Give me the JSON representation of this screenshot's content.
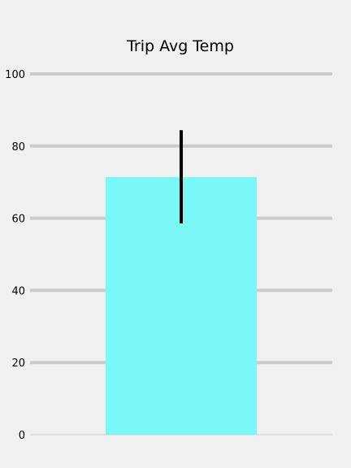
{
  "chart_data": {
    "type": "bar",
    "title": "Trip Avg Temp",
    "xlabel": "",
    "ylabel": "",
    "categories": [
      ""
    ],
    "values": [
      71.4
    ],
    "error": {
      "lower": 58.6,
      "upper": 84.4
    },
    "ylim": [
      0,
      100
    ],
    "yticks": [
      "0",
      "20",
      "40",
      "60",
      "80",
      "100"
    ],
    "ytick_values": [
      0,
      20,
      40,
      60,
      80,
      100
    ],
    "grid": "y",
    "legend": "none",
    "colors": {
      "background": "#f0f0f0",
      "bar": "#7af8f8",
      "grid": "#cbcbcb",
      "errorbar": "#000000",
      "axis": "#cbcbcb"
    }
  }
}
